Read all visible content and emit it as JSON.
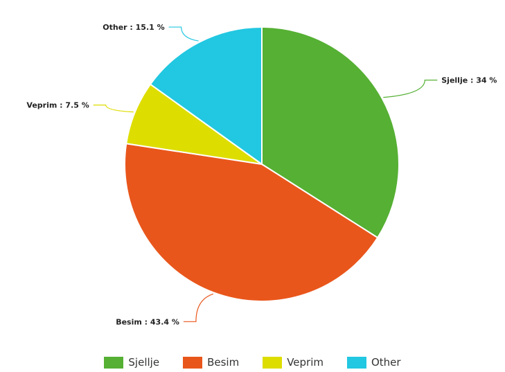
{
  "chart_data": {
    "type": "pie",
    "title": "",
    "series": [
      {
        "name": "Sjellje",
        "value": 34.0,
        "color": "#55b033",
        "label": "Sjellje : 34 %"
      },
      {
        "name": "Besim",
        "value": 43.4,
        "color": "#e9561b",
        "label": "Besim : 43.4 %"
      },
      {
        "name": "Veprim",
        "value": 7.5,
        "color": "#dedd00",
        "label": "Veprim : 7.5 %"
      },
      {
        "name": "Other",
        "value": 15.1,
        "color": "#22c7e1",
        "label": "Other : 15.1 %"
      }
    ],
    "legend_position": "bottom",
    "start_angle": "top, clockwise"
  },
  "legend": {
    "items": [
      {
        "label": "Sjellje",
        "color": "#55b033"
      },
      {
        "label": "Besim",
        "color": "#e9561b"
      },
      {
        "label": "Veprim",
        "color": "#dedd00"
      },
      {
        "label": "Other",
        "color": "#22c7e1"
      }
    ]
  }
}
